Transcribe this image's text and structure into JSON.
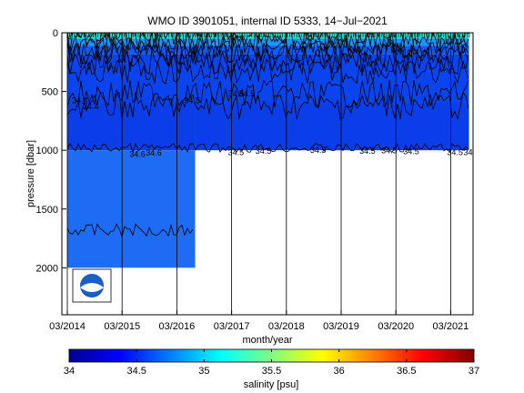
{
  "chart_data": [
    {
      "type": "heatmap",
      "title": "WMO ID 3901051, internal ID 5333, 14−Jul−2021",
      "xlabel": "month/year",
      "ylabel": "pressure [dbar]",
      "x_tick_labels": [
        "03/2014",
        "03/2015",
        "03/2016",
        "03/2017",
        "03/2018",
        "03/2019",
        "03/2020",
        "03/2021"
      ],
      "y_tick_labels": [
        "0",
        "500",
        "1000",
        "1500",
        "2000"
      ],
      "x_range": [
        "2014-03",
        "2021-07"
      ],
      "ylim": [
        0,
        2400
      ],
      "y_reversed": true,
      "profile_depth_segments": [
        {
          "from": "2014-03",
          "to": "2016-07",
          "max_pressure": 2000
        },
        {
          "from": "2016-07",
          "to": "2021-07",
          "max_pressure": 1000
        }
      ],
      "salinity_bands": [
        {
          "pressure_to": 50,
          "salinity": 35.1,
          "color": "#22e0cc"
        },
        {
          "pressure_to": 110,
          "salinity": 34.95,
          "color": "#1898ff"
        },
        {
          "pressure_to": 180,
          "salinity": 34.75,
          "color": "#0c5cf8"
        },
        {
          "pressure_to": 600,
          "salinity": 34.5,
          "color": "#0a44ee"
        },
        {
          "pressure_to": 1000,
          "salinity": 34.45,
          "color": "#0b3ee8"
        },
        {
          "pressure_to": 2000,
          "salinity": 34.6,
          "color": "#1e6cf4"
        }
      ],
      "contour_labels": [
        "34.4",
        "34.4",
        "34.5",
        "34.5",
        "34.5",
        "34.6",
        "34.5",
        "34.5",
        "34.5",
        "34.5",
        "34.5",
        "34.5",
        "34.6",
        "34.5",
        "34.6"
      ],
      "colorbar": {
        "label": "salinity [psu]",
        "range": [
          34,
          37
        ],
        "tick_labels": [
          "34",
          "34.5",
          "35",
          "35.5",
          "36",
          "36.5",
          "37"
        ],
        "colormap": "jet"
      },
      "grid": "vertical lines at x ticks",
      "logo": "noaa-logo"
    }
  ]
}
